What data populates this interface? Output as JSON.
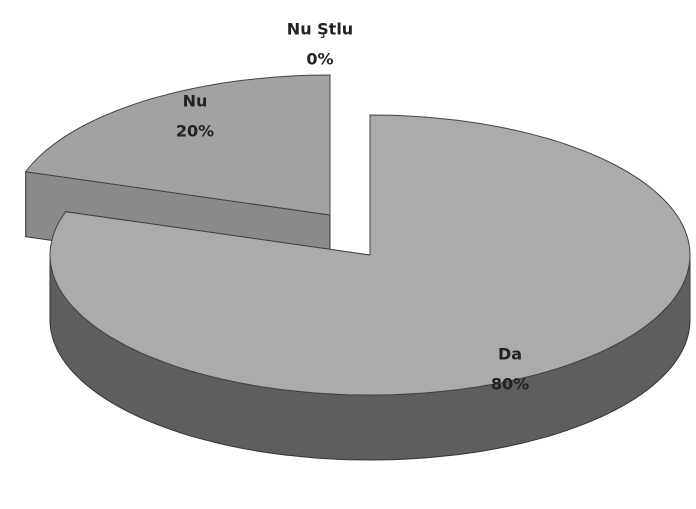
{
  "chart_data": {
    "type": "pie3d",
    "categories": [
      "Da",
      "Nu",
      "Nu Ştlu"
    ],
    "values": [
      80,
      20,
      0
    ],
    "value_labels": [
      "80%",
      "20%",
      "0%"
    ],
    "colors": [
      "#ababab",
      "#a2a2a2",
      "#b5b5b5"
    ]
  }
}
